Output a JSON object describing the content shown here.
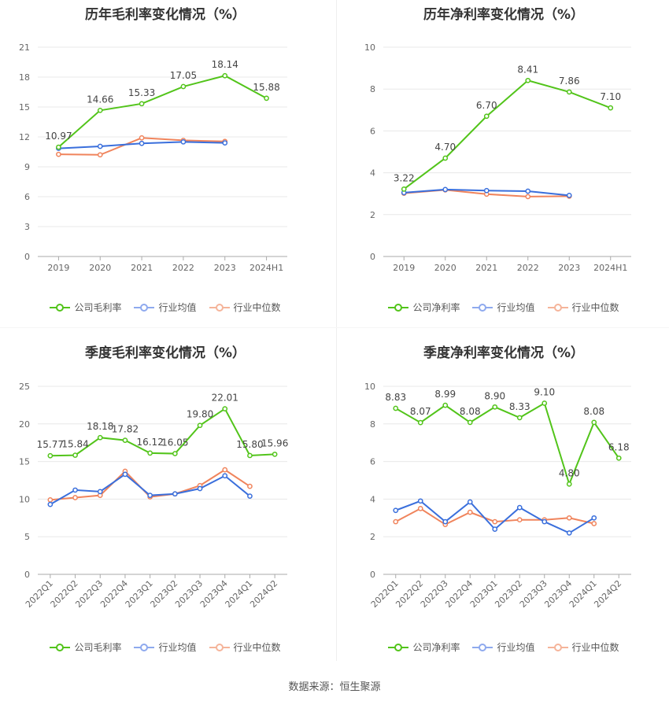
{
  "source": "数据来源：恒生聚源",
  "colors": {
    "company": "#52c41a",
    "avg": "#3a6fdc",
    "median": "#f0845c",
    "grid": "#e8e8e8",
    "axis": "#aaaaaa"
  },
  "chart_data": [
    {
      "id": "annual-gross",
      "type": "line",
      "title": "历年毛利率变化情况（%）",
      "categories": [
        "2019",
        "2020",
        "2021",
        "2022",
        "2023",
        "2024H1"
      ],
      "ylim": [
        0,
        21
      ],
      "yticks": [
        0,
        3,
        6,
        9,
        12,
        15,
        18,
        21
      ],
      "x_rotated": false,
      "series": [
        {
          "name": "公司毛利率",
          "role": "company",
          "values": [
            10.97,
            14.66,
            15.33,
            17.05,
            18.14,
            15.88
          ],
          "labels": [
            "10.97",
            "14.66",
            "15.33",
            "17.05",
            "18.14",
            "15.88"
          ]
        },
        {
          "name": "行业均值",
          "role": "avg",
          "values": [
            10.85,
            11.05,
            11.35,
            11.5,
            11.4,
            null
          ]
        },
        {
          "name": "行业中位数",
          "role": "median",
          "values": [
            10.25,
            10.2,
            11.9,
            11.65,
            11.55,
            null
          ]
        }
      ]
    },
    {
      "id": "annual-net",
      "type": "line",
      "title": "历年净利率变化情况（%）",
      "categories": [
        "2019",
        "2020",
        "2021",
        "2022",
        "2023",
        "2024H1"
      ],
      "ylim": [
        0,
        10
      ],
      "yticks": [
        0,
        2,
        4,
        6,
        8,
        10
      ],
      "x_rotated": false,
      "series": [
        {
          "name": "公司净利率",
          "role": "company",
          "values": [
            3.22,
            4.7,
            6.7,
            8.41,
            7.86,
            7.1
          ],
          "labels": [
            "3.22",
            "4.70",
            "6.70",
            "8.41",
            "7.86",
            "7.10"
          ]
        },
        {
          "name": "行业均值",
          "role": "avg",
          "values": [
            3.05,
            3.2,
            3.15,
            3.12,
            2.92,
            null
          ]
        },
        {
          "name": "行业中位数",
          "role": "median",
          "values": [
            3.02,
            3.18,
            2.98,
            2.86,
            2.88,
            null
          ]
        }
      ]
    },
    {
      "id": "quarterly-gross",
      "type": "line",
      "title": "季度毛利率变化情况（%）",
      "categories": [
        "2022Q1",
        "2022Q2",
        "2022Q3",
        "2022Q4",
        "2023Q1",
        "2023Q2",
        "2023Q3",
        "2023Q4",
        "2024Q1",
        "2024Q2"
      ],
      "ylim": [
        0,
        25
      ],
      "yticks": [
        0,
        5,
        10,
        15,
        20,
        25
      ],
      "x_rotated": true,
      "series": [
        {
          "name": "公司毛利率",
          "role": "company",
          "values": [
            15.77,
            15.84,
            18.18,
            17.82,
            16.12,
            16.05,
            19.8,
            22.01,
            15.8,
            15.96
          ],
          "labels": [
            "15.77",
            "15.84",
            "18.18",
            "17.82",
            "16.12",
            "16.05",
            "19.80",
            "22.01",
            "15.80",
            "15.96"
          ]
        },
        {
          "name": "行业均值",
          "role": "avg",
          "values": [
            9.3,
            11.2,
            11.0,
            13.3,
            10.5,
            10.7,
            11.4,
            13.1,
            10.4,
            null
          ]
        },
        {
          "name": "行业中位数",
          "role": "median",
          "values": [
            9.9,
            10.2,
            10.5,
            13.7,
            10.3,
            10.7,
            11.8,
            13.9,
            11.7,
            null
          ]
        }
      ]
    },
    {
      "id": "quarterly-net",
      "type": "line",
      "title": "季度净利率变化情况（%）",
      "categories": [
        "2022Q1",
        "2022Q2",
        "2022Q3",
        "2022Q4",
        "2023Q1",
        "2023Q2",
        "2023Q3",
        "2023Q4",
        "2024Q1",
        "2024Q2"
      ],
      "ylim": [
        0,
        10
      ],
      "yticks": [
        0,
        2,
        4,
        6,
        8,
        10
      ],
      "x_rotated": true,
      "series": [
        {
          "name": "公司净利率",
          "role": "company",
          "values": [
            8.83,
            8.07,
            8.99,
            8.08,
            8.9,
            8.33,
            9.1,
            4.8,
            8.08,
            6.18
          ],
          "labels": [
            "8.83",
            "8.07",
            "8.99",
            "8.08",
            "8.90",
            "8.33",
            "9.10",
            "4.80",
            "8.08",
            "6.18"
          ]
        },
        {
          "name": "行业均值",
          "role": "avg",
          "values": [
            3.4,
            3.9,
            2.8,
            3.85,
            2.4,
            3.55,
            2.8,
            2.2,
            3.0,
            null
          ]
        },
        {
          "name": "行业中位数",
          "role": "median",
          "values": [
            2.8,
            3.5,
            2.65,
            3.3,
            2.8,
            2.9,
            2.9,
            3.0,
            2.7,
            null
          ]
        }
      ]
    }
  ]
}
